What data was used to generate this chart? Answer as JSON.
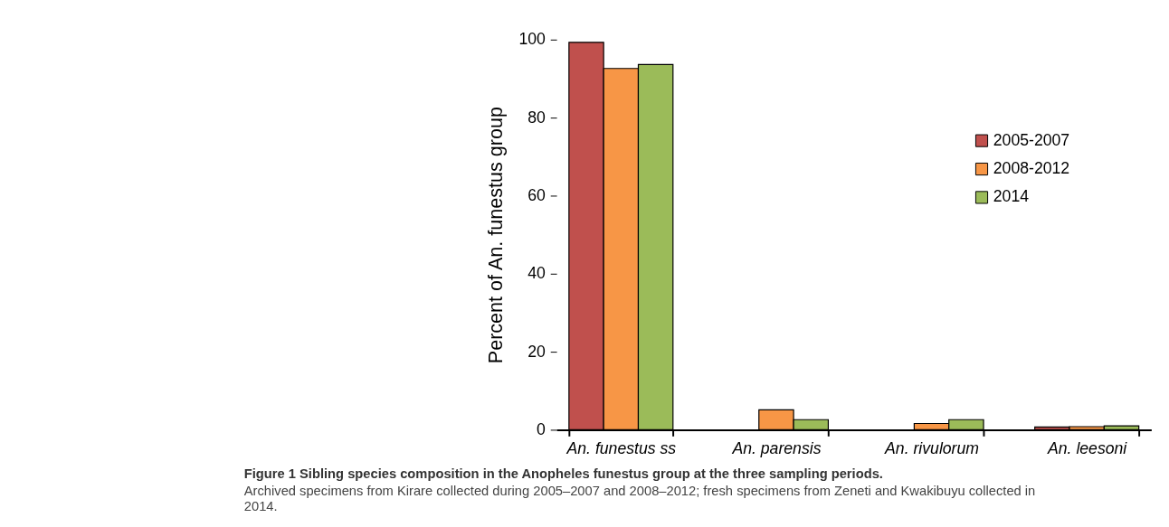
{
  "chart_data": {
    "type": "bar",
    "title": "Figure 1 Sibling species composition in the Anopheles funestus group at the three sampling periods.",
    "subtitle": "Archived specimens from Kirare collected during 2005–2007 and 2008–2012; fresh specimens from Zeneti and Kwakibuyu collected in 2014.",
    "ylabel": "Percent of An. funestus group",
    "categories": [
      "An. funestus ss",
      "An. parensis",
      "An. rivulorum",
      "An. leesoni"
    ],
    "series": [
      {
        "name": "2005-2007",
        "color": "#c0504d",
        "values": [
          99.3,
          0,
          0,
          0.7
        ]
      },
      {
        "name": "2008-2012",
        "color": "#f79646",
        "values": [
          92.6,
          5.1,
          1.6,
          0.8
        ]
      },
      {
        "name": "2014",
        "color": "#9bbb59",
        "values": [
          93.6,
          2.6,
          2.6,
          1.0
        ]
      }
    ],
    "ylim": [
      0,
      100
    ],
    "yticks": [
      0,
      20,
      40,
      60,
      80,
      100
    ],
    "grid": false,
    "legend": "top right"
  }
}
